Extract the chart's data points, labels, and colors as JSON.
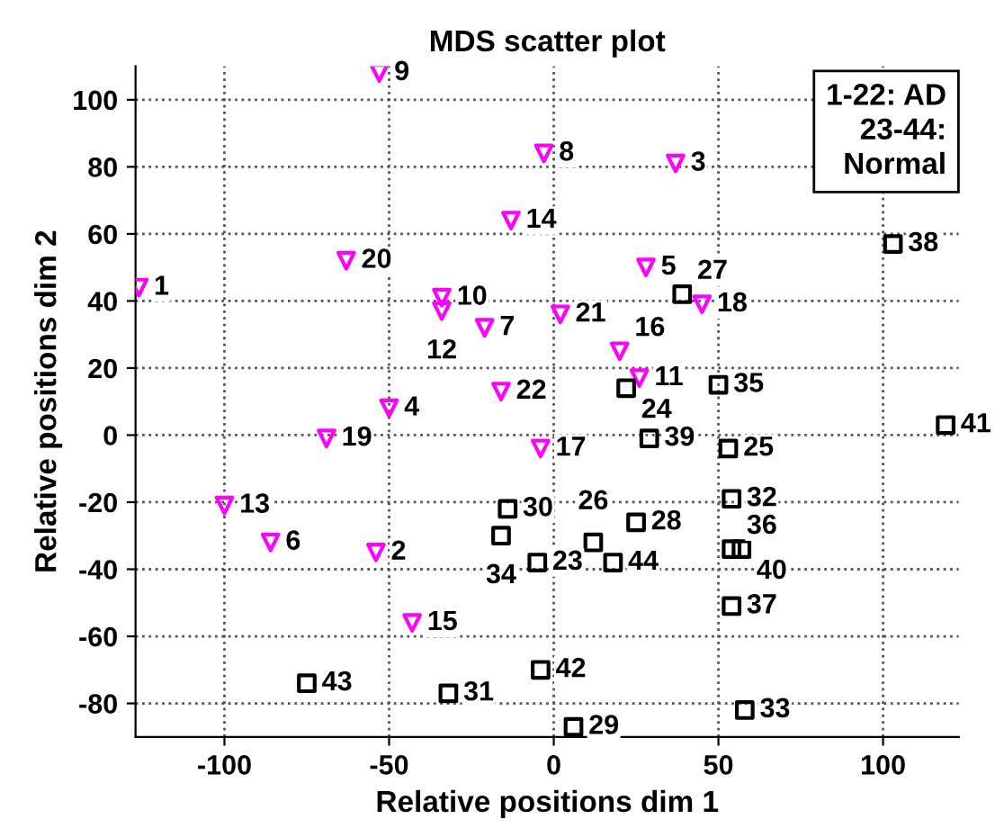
{
  "chart_data": {
    "type": "scatter",
    "title": "MDS scatter plot",
    "xlabel": "Relative positions dim 1",
    "ylabel": "Relative positions dim 2",
    "xlim": [
      -127,
      123
    ],
    "ylim": [
      -90,
      110
    ],
    "xticks": [
      -100,
      -50,
      0,
      50,
      100
    ],
    "yticks": [
      -80,
      -60,
      -40,
      -20,
      0,
      20,
      40,
      60,
      80,
      100
    ],
    "grid": true,
    "series": [
      {
        "color": "#ff00ff",
        "marker": "triangle",
        "x": [
          -126,
          -54,
          37,
          -50,
          28,
          -86,
          -21,
          -3,
          -53,
          -34,
          26,
          -34,
          -100,
          -13,
          -43,
          20,
          -4,
          45,
          -69,
          -63,
          2,
          -16
        ],
        "values": [
          44,
          -35,
          81,
          8,
          50,
          -32,
          32,
          84,
          108,
          41,
          17,
          37,
          -21,
          64,
          -56,
          25,
          -4,
          39,
          -1,
          52,
          36,
          13
        ]
      },
      {
        "color": "#000000",
        "marker": "square",
        "x": [
          -5,
          22,
          53,
          12,
          39,
          25,
          6,
          -14,
          -32,
          54,
          58,
          -16,
          50,
          54,
          54,
          103,
          29,
          57,
          119,
          -4,
          -75,
          18
        ],
        "values": [
          -38,
          14,
          -4,
          -32,
          42,
          -26,
          -87,
          -22,
          -77,
          -19,
          -82,
          -30,
          15,
          -34,
          -51,
          57,
          -1,
          -34,
          3,
          -70,
          -74,
          -38
        ]
      }
    ],
    "annotations": [
      "1-22: AD\n23-44:\nNormal",
      {
        "text": "1",
        "x": -126,
        "y": 44
      },
      {
        "text": "2",
        "x": -54,
        "y": -35
      },
      {
        "text": "3",
        "x": 37,
        "y": 81
      },
      {
        "text": "4",
        "x": -50,
        "y": 8
      },
      {
        "text": "5",
        "x": 28,
        "y": 50
      },
      {
        "text": "6",
        "x": -86,
        "y": -32
      },
      {
        "text": "7",
        "x": -21,
        "y": 32
      },
      {
        "text": "8",
        "x": -3,
        "y": 84
      },
      {
        "text": "9",
        "x": -53,
        "y": 108
      },
      {
        "text": "10",
        "x": -34,
        "y": 41
      },
      {
        "text": "11",
        "x": 26,
        "y": 17
      },
      {
        "text": "12",
        "x": -34,
        "y": 37
      },
      {
        "text": "13",
        "x": -100,
        "y": -21
      },
      {
        "text": "14",
        "x": -13,
        "y": 64
      },
      {
        "text": "15",
        "x": -43,
        "y": -56
      },
      {
        "text": "16",
        "x": 20,
        "y": 25
      },
      {
        "text": "17",
        "x": -4,
        "y": -4
      },
      {
        "text": "18",
        "x": 45,
        "y": 39
      },
      {
        "text": "19",
        "x": -69,
        "y": -1
      },
      {
        "text": "20",
        "x": -63,
        "y": 52
      },
      {
        "text": "21",
        "x": 2,
        "y": 36
      },
      {
        "text": "22",
        "x": -16,
        "y": 13
      },
      {
        "text": "23",
        "x": -5,
        "y": -38
      },
      {
        "text": "24",
        "x": 22,
        "y": 14
      },
      {
        "text": "25",
        "x": 53,
        "y": -4
      },
      {
        "text": "26",
        "x": 12,
        "y": -32
      },
      {
        "text": "27",
        "x": 39,
        "y": 42
      },
      {
        "text": "28",
        "x": 25,
        "y": -26
      },
      {
        "text": "29",
        "x": 6,
        "y": -87
      },
      {
        "text": "30",
        "x": -14,
        "y": -22
      },
      {
        "text": "31",
        "x": -32,
        "y": -77
      },
      {
        "text": "32",
        "x": 54,
        "y": -19
      },
      {
        "text": "33",
        "x": 58,
        "y": -82
      },
      {
        "text": "34",
        "x": -16,
        "y": -30
      },
      {
        "text": "35",
        "x": 50,
        "y": 15
      },
      {
        "text": "36",
        "x": 54,
        "y": -34
      },
      {
        "text": "37",
        "x": 54,
        "y": -51
      },
      {
        "text": "38",
        "x": 103,
        "y": 57
      },
      {
        "text": "39",
        "x": 29,
        "y": -1
      },
      {
        "text": "40",
        "x": 57,
        "y": -34
      },
      {
        "text": "41",
        "x": 119,
        "y": 3
      },
      {
        "text": "42",
        "x": -4,
        "y": -70
      },
      {
        "text": "43",
        "x": -75,
        "y": -74
      },
      {
        "text": "44",
        "x": 18,
        "y": -38
      }
    ]
  }
}
